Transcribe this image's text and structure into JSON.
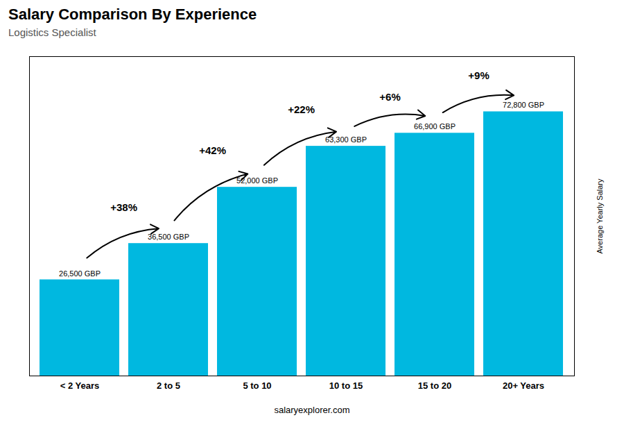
{
  "chart_data": {
    "type": "bar",
    "title": "Salary Comparison By Experience",
    "subtitle": "Logistics Specialist",
    "caption": "salaryexplorer.com",
    "ylabel": "Average Yearly Salary",
    "categories": [
      "< 2 Years",
      "2 to 5",
      "5 to 10",
      "10 to 15",
      "15 to 20",
      "20+ Years"
    ],
    "values": [
      26500,
      36500,
      52000,
      63300,
      66900,
      72800
    ],
    "value_labels": [
      "26,500 GBP",
      "36,500 GBP",
      "52,000 GBP",
      "63,300 GBP",
      "66,900 GBP",
      "72,800 GBP"
    ],
    "data_labels": true,
    "annotations": [
      {
        "text": "+38%",
        "from": "< 2 Years",
        "to": "2 to 5"
      },
      {
        "text": "+42%",
        "from": "2 to 5",
        "to": "5 to 10"
      },
      {
        "text": "+22%",
        "from": "5 to 10",
        "to": "10 to 15"
      },
      {
        "text": "+6%",
        "from": "10 to 15",
        "to": "15 to 20"
      },
      {
        "text": "+9%",
        "from": "15 to 20",
        "to": "20+ Years"
      }
    ],
    "color": "#00b8e0",
    "ylim": [
      0,
      88000
    ],
    "tick_labels": "x",
    "grid": false
  }
}
